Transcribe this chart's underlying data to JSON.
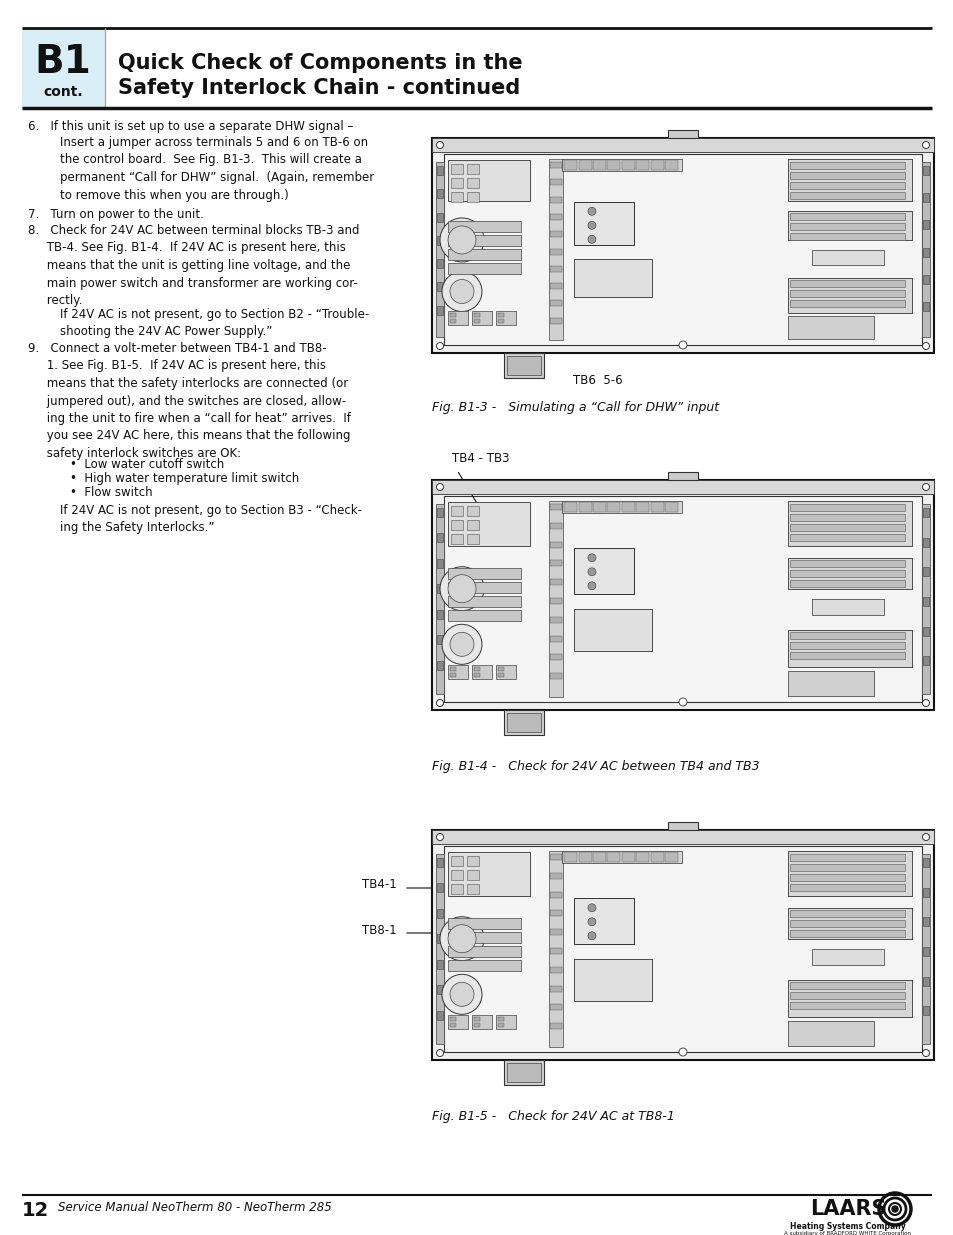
{
  "page_bg": "#ffffff",
  "header_bg": "#daeef8",
  "header_b1_text": "B1",
  "header_cont_text": "cont.",
  "header_title_line1": "Quick Check of Components in the",
  "header_title_line2": "Safety Interlock Chain - continued",
  "footer_page_num": "12",
  "footer_manual_text": "Service Manual NeoTherm 80 - NeoTherm 285",
  "item6_line1": "6.   If this unit is set up to use a separate DHW signal –",
  "item6_sub": "Insert a jumper across terminals 5 and 6 on TB-6 on\nthe control board.  See Fig. B1-3.  This will create a\npermanent “Call for DHW” signal.  (Again, remember\nto remove this when you are through.)",
  "item7": "7.   Turn on power to the unit.",
  "item8_head": "8.   Check for 24V AC between terminal blocks TB-3 and\n     TB-4. See Fig. B1-4.  If 24V AC is present here, this\n     means that the unit is getting line voltage, and the\n     main power switch and transformer are working cor-\n     rectly.",
  "item8_sub": "If 24V AC is not present, go to Section B2 - “Trouble-\nshooting the 24V AC Power Supply.”",
  "item9_head": "9.   Connect a volt-meter between TB4-1 and TB8-\n     1. See Fig. B1-5.  If 24V AC is present here, this\n     means that the safety interlocks are connected (or\n     jumpered out), and the switches are closed, allow-\n     ing the unit to fire when a “call for heat” arrives.  If\n     you see 24V AC here, this means that the following\n     safety interlock switches are OK:",
  "item9_bullets": [
    "•  Low water cutoff switch",
    "•  High water temperature limit switch",
    "•  Flow switch"
  ],
  "item9_sub": "If 24V AC is not present, go to Section B3 - “Check-\ning the Safety Interlocks.”",
  "fig1_caption": "Fig. B1-3 -   Simulating a “Call for DHW” input",
  "fig1_label": "TB6  5-6",
  "fig2_caption": "Fig. B1-4 -   Check for 24V AC between TB4 and TB3",
  "fig2_label": "TB4 - TB3",
  "fig3_caption": "Fig. B1-5 -   Check for 24V AC at TB8-1",
  "fig3_label1": "TB4-1",
  "fig3_label2": "TB8-1"
}
